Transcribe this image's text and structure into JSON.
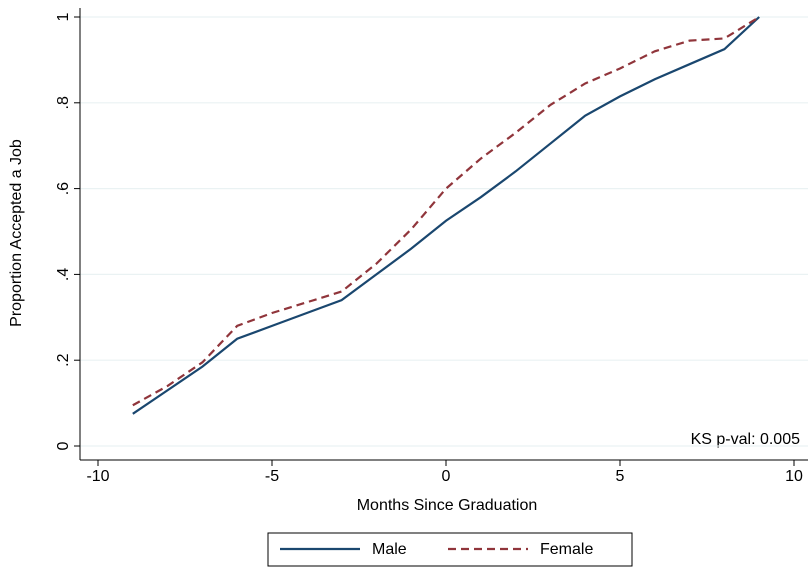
{
  "chart_data": {
    "type": "line",
    "x_label": "Months Since Graduation",
    "y_label": "Proportion Accepted a Job",
    "annotation": "KS p-val: 0.005",
    "x": [
      -9,
      -8,
      -7,
      -6,
      -5,
      -4,
      -3,
      -2,
      -1,
      0,
      1,
      2,
      3,
      4,
      5,
      6,
      7,
      8,
      9
    ],
    "series": [
      {
        "name": "Male",
        "color": "#1a476f",
        "dashed": false,
        "values": [
          0.075,
          0.13,
          0.185,
          0.25,
          0.28,
          0.31,
          0.34,
          0.4,
          0.46,
          0.525,
          0.58,
          0.64,
          0.705,
          0.77,
          0.815,
          0.855,
          0.89,
          0.925,
          1.0
        ]
      },
      {
        "name": "Female",
        "color": "#90353b",
        "dashed": true,
        "values": [
          0.095,
          0.14,
          0.195,
          0.28,
          0.31,
          0.335,
          0.36,
          0.425,
          0.505,
          0.6,
          0.67,
          0.73,
          0.795,
          0.845,
          0.88,
          0.92,
          0.945,
          0.95,
          1.0
        ]
      }
    ],
    "xlim": [
      -10,
      10
    ],
    "xticks": [
      -10,
      -5,
      0,
      5,
      10
    ],
    "ylim": [
      0,
      1
    ],
    "yticks": [
      0,
      {
        "value": 0.2,
        "label": ".2"
      },
      {
        "value": 0.4,
        "label": ".4"
      },
      {
        "value": 0.6,
        "label": ".6"
      },
      {
        "value": 0.8,
        "label": ".8"
      },
      1
    ],
    "grid": true,
    "legend": "bottom"
  }
}
